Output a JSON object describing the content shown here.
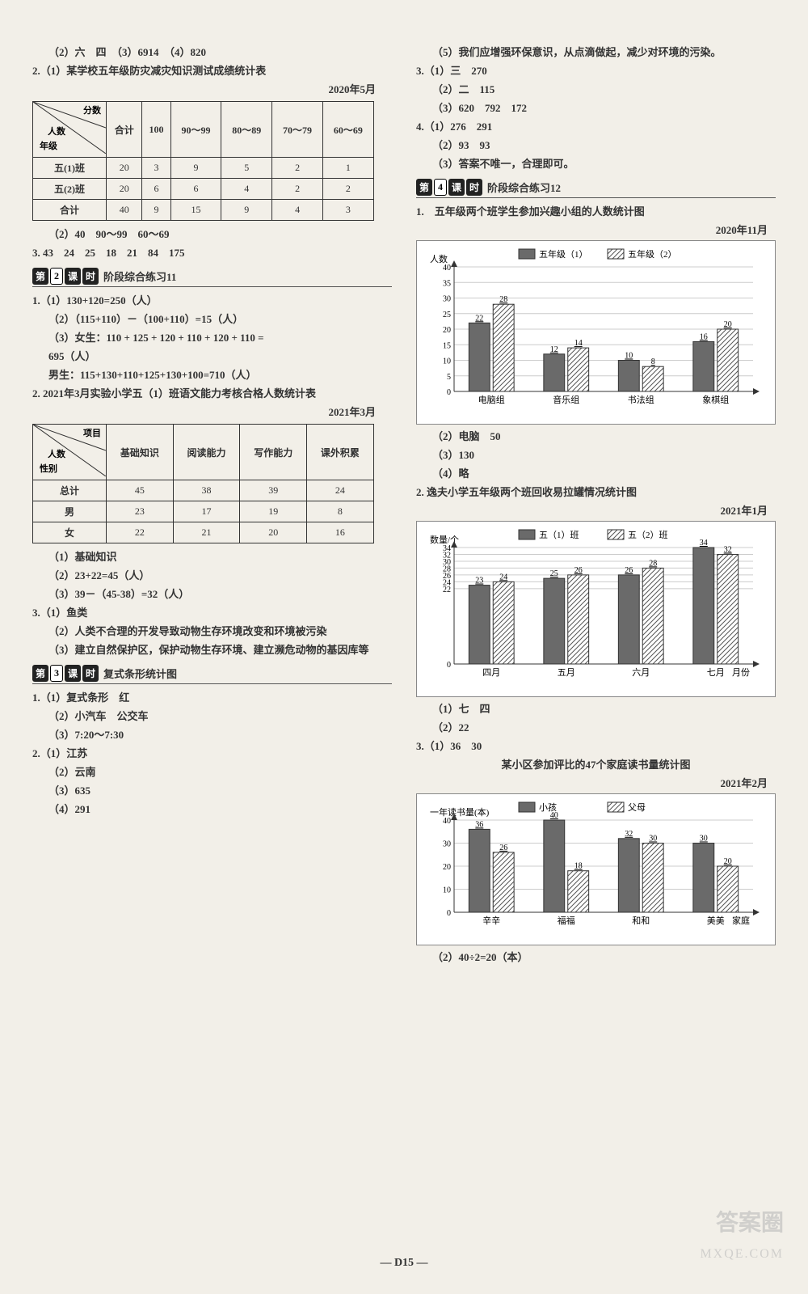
{
  "left": {
    "top_line": "（2）六　四　（3）6914　（4）820",
    "q2_1": "2.（1）某学校五年级防灾减灾知识测试成绩统计表",
    "date1": "2020年5月",
    "table1": {
      "diag_top": "分数",
      "diag_mid": "人数",
      "diag_bot": "年级",
      "cols": [
        "合计",
        "100",
        "90～99",
        "80～89",
        "70～79",
        "60～69"
      ],
      "rows": [
        {
          "label": "五(1)班",
          "vals": [
            "20",
            "3",
            "9",
            "5",
            "2",
            "1"
          ]
        },
        {
          "label": "五(2)班",
          "vals": [
            "20",
            "6",
            "6",
            "4",
            "2",
            "2"
          ]
        },
        {
          "label": "合计",
          "vals": [
            "40",
            "9",
            "15",
            "9",
            "4",
            "3"
          ]
        }
      ]
    },
    "after_t1": "（2）40　90～99　60～69",
    "q3_nums": "3. 43　24　25　18　21　84　175",
    "sec2_badge1": "第",
    "sec2_badge_num": "2",
    "sec2_badge2": "课",
    "sec2_badge3": "时",
    "sec2_title": "阶段综合练习11",
    "p11_1": "1.（1）130+120=250（人）",
    "p11_2": "（2）（115+110）－（100+110）=15（人）",
    "p11_3a": "（3）女生：110 + 125 + 120 + 110 + 120 + 110 =",
    "p11_3b": "695（人）",
    "p11_3c": "男生：115+130+110+125+130+100=710（人）",
    "q2_title": "2. 2021年3月实验小学五（1）班语文能力考核合格人数统计表",
    "date2": "2021年3月",
    "table2": {
      "diag_top": "项目",
      "diag_mid": "人数",
      "diag_bot": "性别",
      "cols": [
        "基础知识",
        "阅读能力",
        "写作能力",
        "课外积累"
      ],
      "rows": [
        {
          "label": "总计",
          "vals": [
            "45",
            "38",
            "39",
            "24"
          ]
        },
        {
          "label": "男",
          "vals": [
            "23",
            "17",
            "19",
            "8"
          ]
        },
        {
          "label": "女",
          "vals": [
            "22",
            "21",
            "20",
            "16"
          ]
        }
      ]
    },
    "t2_after": [
      "（1）基础知识",
      "（2）23+22=45（人）",
      "（3）39－（45-38）=32（人）"
    ],
    "q3_fish": [
      "3.（1）鱼类",
      "（2）人类不合理的开发导致动物生存环境改变和环境被污染",
      "（3）建立自然保护区，保护动物生存环境、建立濒危动物的基因库等"
    ],
    "sec3_num": "3",
    "sec3_title": "复式条形统计图",
    "p3_items": [
      "1.（1）复式条形　红",
      "（2）小汽车　公交车",
      "（3）7:20～7:30"
    ],
    "p3_items2": [
      "2.（1）江苏",
      "（2）云南",
      "（3）635",
      "（4）291"
    ]
  },
  "right": {
    "top5": "（5）我们应增强环保意识，从点滴做起，减少对环境的污染。",
    "p3": [
      "3.（1）三　270",
      "（2）二　115",
      "（3）620　792　172"
    ],
    "p4": [
      "4.（1）276　291",
      "（2）93　93",
      "（3）答案不唯一，合理即可。"
    ],
    "sec4_num": "4",
    "sec4_title": "阶段综合练习12",
    "chart1": {
      "title": "1.　五年级两个班学生参加兴趣小组的人数统计图",
      "date": "2020年11月",
      "ylabel": "人数",
      "ytick": [
        0,
        5,
        10,
        15,
        20,
        25,
        30,
        35,
        40
      ],
      "legend": [
        "五年级（1）",
        "五年级（2）"
      ],
      "cats": [
        "电脑组",
        "音乐组",
        "书法组",
        "象棋组"
      ],
      "series1": [
        22,
        12,
        10,
        16
      ],
      "series2": [
        28,
        14,
        8,
        20
      ],
      "color1": "#6a6a6a",
      "color2_pattern": true,
      "bg": "#ffffff"
    },
    "c1_after": [
      "（2）电脑　50",
      "（3）130",
      "（4）略"
    ],
    "chart2": {
      "title": "2. 逸夫小学五年级两个班回收易拉罐情况统计图",
      "date": "2021年1月",
      "ylabel": "数量/个",
      "ytick": [
        0,
        22,
        24,
        26,
        28,
        30,
        32,
        34
      ],
      "legend": [
        "五（1）班",
        "五（2）班"
      ],
      "cats": [
        "四月",
        "五月",
        "六月",
        "七月"
      ],
      "xlabel": "月份",
      "series1": [
        23,
        25,
        26,
        34
      ],
      "series2": [
        24,
        26,
        28,
        32
      ],
      "color1": "#6a6a6a",
      "bg": "#ffffff"
    },
    "c2_after": [
      "（1）七　四",
      "（2）22"
    ],
    "q3_top": "3.（1）36　30",
    "chart3": {
      "title": "某小区参加评比的47个家庭读书量统计图",
      "date": "2021年2月",
      "ylabel": "一年读书量(本)",
      "legend": [
        "小孩",
        "父母"
      ],
      "ytick": [
        0,
        10,
        20,
        30,
        40
      ],
      "cats": [
        "辛辛",
        "福福",
        "和和",
        "美美"
      ],
      "xlabel": "家庭",
      "series1": [
        36,
        40,
        32,
        30
      ],
      "series2": [
        26,
        18,
        30,
        20
      ],
      "bg": "#ffffff"
    },
    "c3_after": "（2）40÷2=20（本）"
  },
  "footer": "— D15 —",
  "wm1": "答案圈",
  "wm2": "MXQE.COM"
}
